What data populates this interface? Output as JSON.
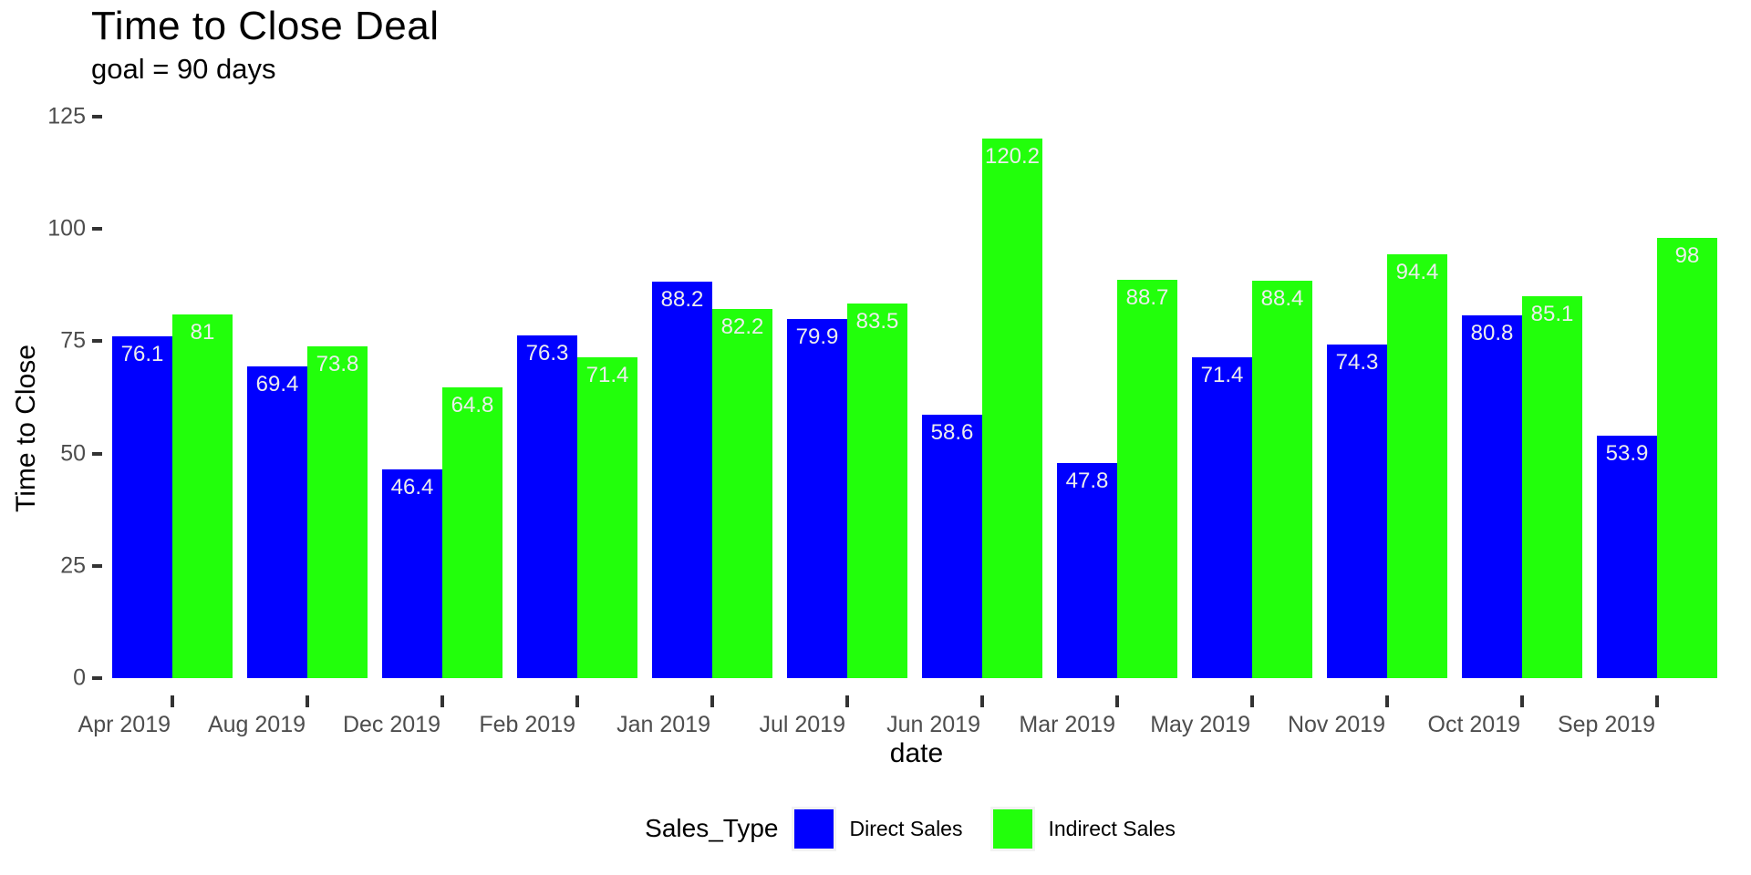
{
  "chart_data": {
    "type": "bar",
    "title": "Time to Close Deal",
    "subtitle": "goal = 90 days",
    "xlabel": "date",
    "ylabel": "Time to Close",
    "legend_title": "Sales_Type",
    "legend_position": "bottom",
    "grid": false,
    "ylim": [
      0,
      125
    ],
    "yticks": [
      0,
      25,
      50,
      75,
      100,
      125
    ],
    "categories": [
      "Apr 2019",
      "Aug 2019",
      "Dec 2019",
      "Feb 2019",
      "Jan 2019",
      "Jul 2019",
      "Jun 2019",
      "Mar 2019",
      "May 2019",
      "Nov 2019",
      "Oct 2019",
      "Sep 2019"
    ],
    "series": [
      {
        "name": "Direct Sales",
        "color": "#0000ff",
        "values": [
          76.1,
          69.4,
          46.4,
          76.3,
          88.2,
          79.9,
          58.6,
          47.8,
          71.4,
          74.3,
          80.8,
          53.9
        ]
      },
      {
        "name": "Indirect Sales",
        "color": "#22ff0b",
        "values": [
          81,
          73.8,
          64.8,
          71.4,
          82.2,
          83.5,
          120.2,
          88.7,
          88.4,
          94.4,
          85.1,
          98
        ]
      }
    ],
    "value_label_color": "#ededed",
    "axis_text_color": "#4d4d4d",
    "tick_mark_color": "#333333"
  }
}
